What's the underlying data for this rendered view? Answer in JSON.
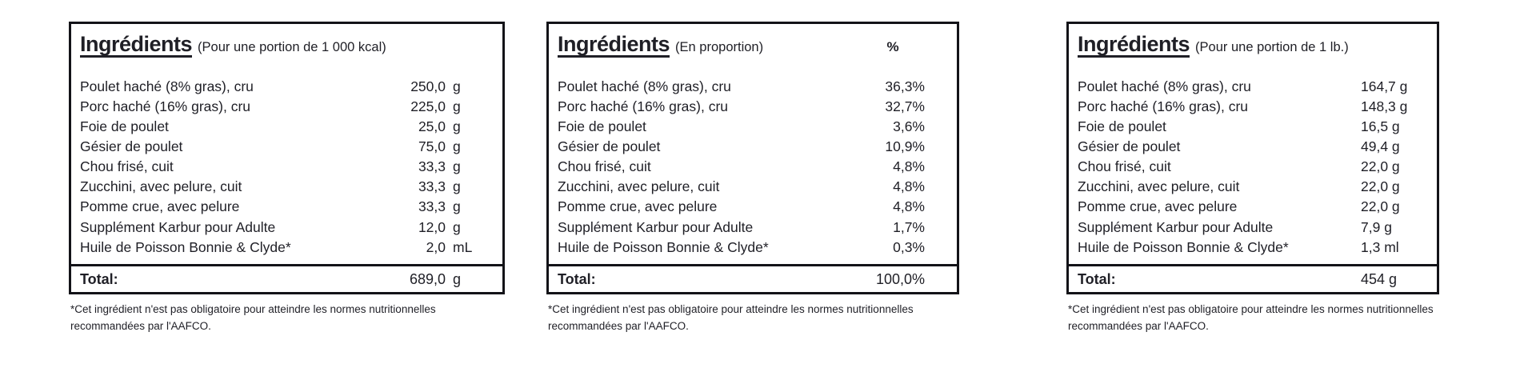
{
  "page": {
    "background_color": "#ffffff",
    "text_color": "#1f1f26",
    "border_color": "#131318"
  },
  "footnote": {
    "line1": "*Cet ingrédient n'est pas obligatoire pour atteindre les normes nutritionnelles",
    "line2": "recommandées par l'AAFCO."
  },
  "tables": [
    {
      "title": "Ingrédients",
      "subtitle": "(Pour une portion de 1 000 kcal)",
      "value_header": "",
      "rows": [
        {
          "name": "Poulet haché (8% gras), cru",
          "value": "250,0",
          "unit": "g"
        },
        {
          "name": "Porc haché (16% gras), cru",
          "value": "225,0",
          "unit": "g"
        },
        {
          "name": "Foie de poulet",
          "value": "25,0",
          "unit": "g"
        },
        {
          "name": "Gésier de poulet",
          "value": "75,0",
          "unit": "g"
        },
        {
          "name": "Chou frisé, cuit",
          "value": "33,3",
          "unit": "g"
        },
        {
          "name": "Zucchini, avec pelure, cuit",
          "value": "33,3",
          "unit": "g"
        },
        {
          "name": "Pomme crue, avec pelure",
          "value": "33,3",
          "unit": "g"
        },
        {
          "name": "Supplément Karbur pour Adulte",
          "value": "12,0",
          "unit": "g"
        },
        {
          "name": "Huile de Poisson Bonnie & Clyde*",
          "value": "2,0",
          "unit": "mL"
        }
      ],
      "total": {
        "label": "Total:",
        "value": "689,0",
        "unit": "g"
      }
    },
    {
      "title": "Ingrédients",
      "subtitle": "(En proportion)",
      "value_header": "%",
      "rows": [
        {
          "name": "Poulet haché (8% gras), cru",
          "value": "36,3%"
        },
        {
          "name": "Porc haché (16% gras), cru",
          "value": "32,7%"
        },
        {
          "name": "Foie de poulet",
          "value": "3,6%"
        },
        {
          "name": "Gésier de poulet",
          "value": "10,9%"
        },
        {
          "name": "Chou frisé, cuit",
          "value": "4,8%"
        },
        {
          "name": "Zucchini, avec pelure, cuit",
          "value": "4,8%"
        },
        {
          "name": "Pomme crue, avec pelure",
          "value": "4,8%"
        },
        {
          "name": "Supplément Karbur pour Adulte",
          "value": "1,7%"
        },
        {
          "name": "Huile de Poisson Bonnie & Clyde*",
          "value": "0,3%"
        }
      ],
      "total": {
        "label": "Total:",
        "value": "100,0%",
        "unit": ""
      }
    },
    {
      "title": "Ingrédients",
      "subtitle": "(Pour une portion de 1 lb.)",
      "value_header": "",
      "rows": [
        {
          "name": "Poulet haché (8% gras), cru",
          "value": "164,7 g"
        },
        {
          "name": "Porc haché (16% gras), cru",
          "value": "148,3 g"
        },
        {
          "name": "Foie de poulet",
          "value": "16,5 g"
        },
        {
          "name": "Gésier de poulet",
          "value": "49,4 g"
        },
        {
          "name": "Chou frisé, cuit",
          "value": "22,0 g"
        },
        {
          "name": "Zucchini, avec pelure, cuit",
          "value": "22,0 g"
        },
        {
          "name": "Pomme crue, avec pelure",
          "value": "22,0 g"
        },
        {
          "name": "Supplément Karbur pour Adulte",
          "value": "7,9 g"
        },
        {
          "name": "Huile de Poisson Bonnie & Clyde*",
          "value": "1,3 ml"
        }
      ],
      "total": {
        "label": "Total:",
        "value": "454 g",
        "unit": ""
      }
    }
  ]
}
